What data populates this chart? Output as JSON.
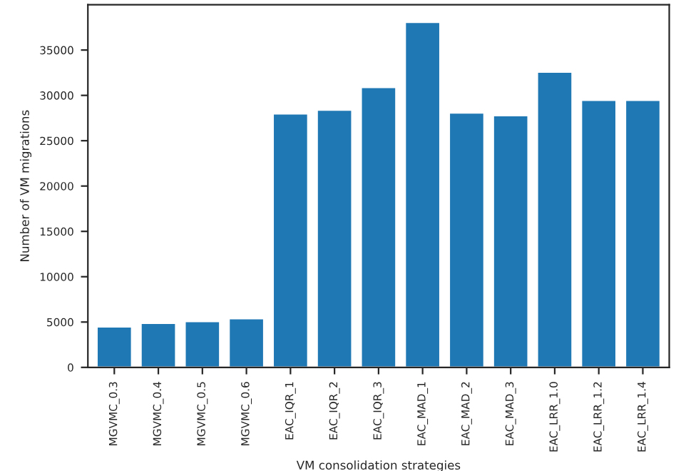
{
  "chart_data": {
    "type": "bar",
    "xlabel": "VM consolidation strategies",
    "ylabel": "Number of VM migrations",
    "categories": [
      "MGVMC_0.3",
      "MGVMC_0.4",
      "MGVMC_0.5",
      "MGVMC_0.6",
      "EAC_IQR_1",
      "EAC_IQR_2",
      "EAC_IQR_3",
      "EAC_MAD_1",
      "EAC_MAD_2",
      "EAC_MAD_3",
      "EAC_LRR_1.0",
      "EAC_LRR_1.2",
      "EAC_LRR_1.4"
    ],
    "values": [
      4500,
      4900,
      5100,
      5400,
      28000,
      28400,
      30900,
      38100,
      28100,
      27800,
      32600,
      29500,
      29500
    ],
    "color": "#1f77b4",
    "ylim": [
      0,
      40000
    ],
    "yticks": [
      0,
      5000,
      10000,
      15000,
      20000,
      25000,
      30000,
      35000
    ],
    "grid": false
  }
}
